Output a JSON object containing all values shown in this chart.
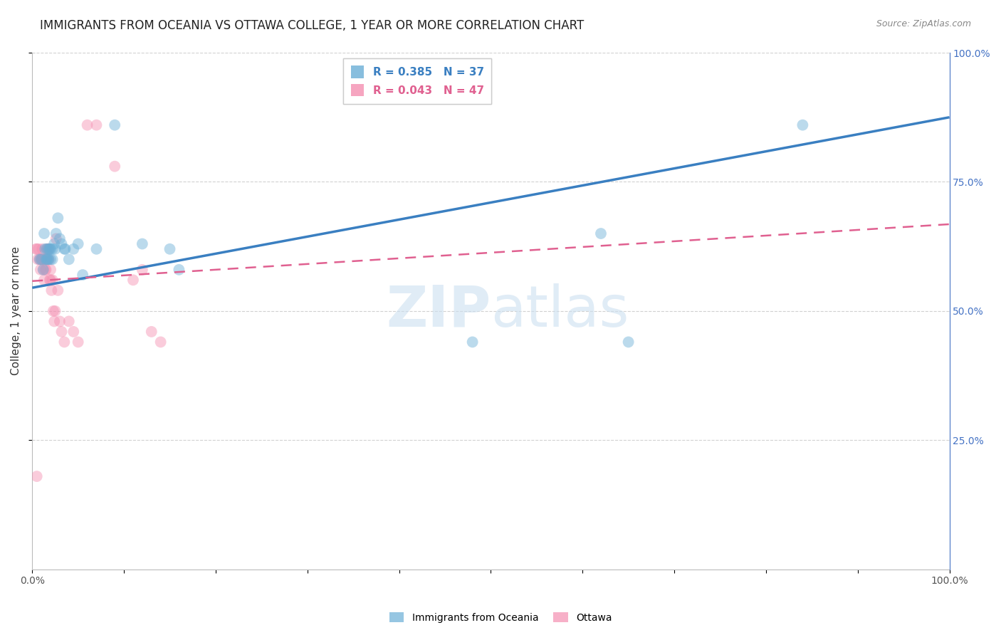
{
  "title": "IMMIGRANTS FROM OCEANIA VS OTTAWA COLLEGE, 1 YEAR OR MORE CORRELATION CHART",
  "source": "Source: ZipAtlas.com",
  "ylabel": "College, 1 year or more",
  "xlim": [
    0,
    1
  ],
  "ylim": [
    0,
    1
  ],
  "bottom_legend": [
    "Immigrants from Oceania",
    "Ottawa"
  ],
  "blue_scatter_x": [
    0.008,
    0.01,
    0.012,
    0.013,
    0.014,
    0.015,
    0.016,
    0.016,
    0.017,
    0.018,
    0.018,
    0.019,
    0.02,
    0.02,
    0.022,
    0.022,
    0.024,
    0.025,
    0.026,
    0.028,
    0.03,
    0.032,
    0.035,
    0.036,
    0.04,
    0.045,
    0.05,
    0.055,
    0.07,
    0.09,
    0.12,
    0.15,
    0.16,
    0.48,
    0.62,
    0.65,
    0.84
  ],
  "blue_scatter_y": [
    0.6,
    0.6,
    0.58,
    0.65,
    0.62,
    0.6,
    0.62,
    0.6,
    0.6,
    0.62,
    0.6,
    0.62,
    0.62,
    0.6,
    0.62,
    0.6,
    0.63,
    0.62,
    0.65,
    0.68,
    0.64,
    0.63,
    0.62,
    0.62,
    0.6,
    0.62,
    0.63,
    0.57,
    0.62,
    0.86,
    0.63,
    0.62,
    0.58,
    0.44,
    0.65,
    0.44,
    0.86
  ],
  "pink_scatter_x": [
    0.004,
    0.005,
    0.006,
    0.007,
    0.008,
    0.009,
    0.009,
    0.01,
    0.011,
    0.011,
    0.012,
    0.012,
    0.013,
    0.013,
    0.014,
    0.014,
    0.015,
    0.015,
    0.016,
    0.016,
    0.017,
    0.018,
    0.018,
    0.019,
    0.02,
    0.02,
    0.021,
    0.022,
    0.023,
    0.024,
    0.025,
    0.026,
    0.028,
    0.03,
    0.032,
    0.035,
    0.04,
    0.045,
    0.05,
    0.06,
    0.07,
    0.09,
    0.11,
    0.12,
    0.13,
    0.14,
    0.005
  ],
  "pink_scatter_y": [
    0.62,
    0.62,
    0.6,
    0.62,
    0.6,
    0.6,
    0.58,
    0.6,
    0.62,
    0.6,
    0.6,
    0.58,
    0.6,
    0.56,
    0.6,
    0.58,
    0.6,
    0.58,
    0.62,
    0.6,
    0.62,
    0.62,
    0.6,
    0.56,
    0.58,
    0.56,
    0.54,
    0.56,
    0.5,
    0.48,
    0.5,
    0.64,
    0.54,
    0.48,
    0.46,
    0.44,
    0.48,
    0.46,
    0.44,
    0.86,
    0.86,
    0.78,
    0.56,
    0.58,
    0.46,
    0.44,
    0.18
  ],
  "blue_line_x": [
    0,
    1
  ],
  "blue_line_y": [
    0.545,
    0.875
  ],
  "pink_line_x": [
    0,
    1
  ],
  "pink_line_y": [
    0.558,
    0.668
  ],
  "scatter_alpha": 0.45,
  "scatter_size": 130,
  "blue_color": "#6aaed6",
  "pink_color": "#f48fb1",
  "blue_line_color": "#3a7fc1",
  "pink_line_color": "#e06090",
  "watermark_zip": "ZIP",
  "watermark_atlas": "atlas",
  "grid_color": "#cccccc",
  "title_fontsize": 12,
  "axis_label_fontsize": 11,
  "tick_fontsize": 10,
  "right_tick_color": "#4472c4"
}
